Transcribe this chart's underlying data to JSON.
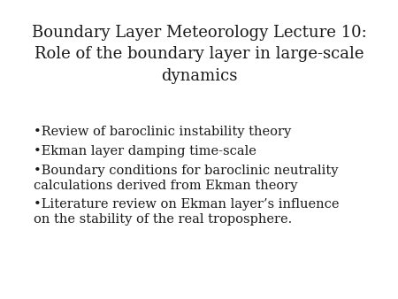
{
  "background_color": "#ffffff",
  "title_lines": [
    "Boundary Layer Meteorology Lecture 10:",
    "Role of the boundary layer in large-scale",
    "dynamics"
  ],
  "title_fontsize": 13,
  "title_color": "#1a1a1a",
  "bullet_items": [
    "Review of baroclinic instability theory",
    "Ekman layer damping time-scale",
    "Boundary conditions for baroclinic neutrality\ncalculations derived from Ekman theory",
    "Literature review on Ekman layer’s influence\non the stability of the real troposphere."
  ],
  "bullet_fontsize": 10.5,
  "bullet_color": "#1a1a1a",
  "font_family": "serif"
}
